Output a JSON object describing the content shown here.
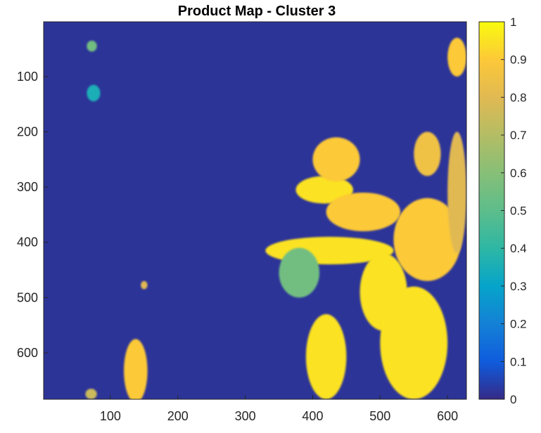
{
  "chart_data": {
    "type": "heatmap",
    "title": "Product Map - Cluster 3",
    "xlabel": "",
    "ylabel": "",
    "xlim": [
      1,
      628
    ],
    "ylim": [
      1,
      684
    ],
    "y_direction": "reversed",
    "x_ticks": [
      100,
      200,
      300,
      400,
      500,
      600
    ],
    "y_ticks": [
      100,
      200,
      300,
      400,
      500,
      600
    ],
    "colormap": "parula",
    "clim": [
      0,
      1
    ],
    "colorbar_ticks": [
      0,
      0.1,
      0.2,
      0.3,
      0.4,
      0.5,
      0.6,
      0.7,
      0.8,
      0.9,
      1
    ],
    "background_value": 0.02,
    "regions": [
      {
        "x": [
          65,
          80
        ],
        "y": [
          35,
          55
        ],
        "value": 0.55
      },
      {
        "x": [
          65,
          85
        ],
        "y": [
          115,
          145
        ],
        "value": 0.35
      },
      {
        "x": [
          63,
          80
        ],
        "y": [
          665,
          684
        ],
        "value": 0.75
      },
      {
        "x": [
          120,
          155
        ],
        "y": [
          575,
          690
        ],
        "value": 0.9
      },
      {
        "x": [
          145,
          155
        ],
        "y": [
          470,
          485
        ],
        "value": 0.8
      },
      {
        "x": [
          375,
          460
        ],
        "y": [
          280,
          330
        ],
        "value": 0.95
      },
      {
        "x": [
          400,
          470
        ],
        "y": [
          210,
          290
        ],
        "value": 0.9
      },
      {
        "x": [
          330,
          520
        ],
        "y": [
          390,
          440
        ],
        "value": 0.95
      },
      {
        "x": [
          420,
          530
        ],
        "y": [
          310,
          380
        ],
        "value": 0.9
      },
      {
        "x": [
          520,
          620
        ],
        "y": [
          320,
          470
        ],
        "value": 0.9
      },
      {
        "x": [
          470,
          540
        ],
        "y": [
          420,
          560
        ],
        "value": 0.95
      },
      {
        "x": [
          500,
          600
        ],
        "y": [
          480,
          684
        ],
        "value": 0.95
      },
      {
        "x": [
          390,
          450
        ],
        "y": [
          530,
          684
        ],
        "value": 0.95
      },
      {
        "x": [
          550,
          590
        ],
        "y": [
          200,
          280
        ],
        "value": 0.85
      },
      {
        "x": [
          600,
          628
        ],
        "y": [
          30,
          100
        ],
        "value": 0.9
      },
      {
        "x": [
          600,
          628
        ],
        "y": [
          200,
          420
        ],
        "value": 0.8
      },
      {
        "x": [
          350,
          410
        ],
        "y": [
          410,
          500
        ],
        "value": 0.55
      }
    ]
  }
}
